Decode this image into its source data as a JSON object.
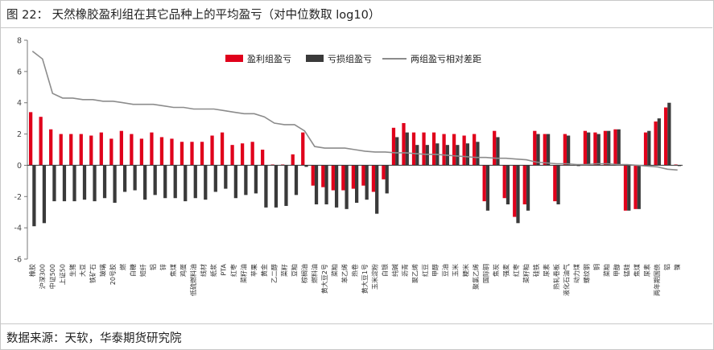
{
  "figure": {
    "title": "图 22：  天然橡胶盈利组在其它品种上的平均盈亏（对中位数取 log10）",
    "source": "数据来源：天软，华泰期货研究院"
  },
  "chart_data": {
    "type": "bar",
    "title": "",
    "xlabel": "",
    "ylabel": "",
    "ylim": [
      -6,
      8
    ],
    "yticks": [
      -6,
      -4,
      -2,
      0,
      2,
      4,
      6,
      8
    ],
    "grid": false,
    "legend_position": "top-right",
    "colors": {
      "profit": "#e0001b",
      "loss": "#3a3a3a",
      "line": "#8c8c8c"
    },
    "categories": [
      "橡胶",
      "沪深300",
      "中证500",
      "上证50",
      "生猪",
      "大豆",
      "铁矿石",
      "玻璃",
      "20号胶",
      "燃",
      "白糖",
      "短纤",
      "铝",
      "锌",
      "焦煤",
      "鸡蛋",
      "低硫燃料油",
      "线材",
      "纸浆",
      "PTA",
      "红枣",
      "菜籽油",
      "苹果",
      "黄金",
      "乙二醇",
      "菜籽",
      "豆粕",
      "棕榈油",
      "燃料油",
      "黄大豆2号",
      "菜粕",
      "苯乙烯",
      "热卷",
      "黄大豆1号",
      "玉米淀粉",
      "白银",
      "纯碱",
      "沥青",
      "聚乙烯",
      "红豆",
      "甲醇",
      "豆油",
      "玉米",
      "粳米",
      "聚氯乙烯",
      "国际铜",
      "焦炭",
      "强麦",
      "红枣",
      "菜籽粕",
      "硅铁",
      "尿素",
      "热轧卷板",
      "液化石油气",
      "动力煤",
      "螺纹钢",
      "铜",
      "菜粕",
      "甲醇",
      "锰硅",
      "焦煤",
      "尿素",
      "两年期国债",
      "铝",
      "镍"
    ],
    "series": [
      {
        "name": "盈利组盈亏",
        "values": [
          3.4,
          3.1,
          2.3,
          2.0,
          2.0,
          2.0,
          1.9,
          2.1,
          1.7,
          2.2,
          2.0,
          1.7,
          2.1,
          1.8,
          1.7,
          1.5,
          1.5,
          1.5,
          1.9,
          2.1,
          1.3,
          1.4,
          1.5,
          1.0,
          0.05,
          0.05,
          0.7,
          2.1,
          -1.3,
          -1.4,
          -1.6,
          -1.6,
          -1.5,
          -1.3,
          -1.7,
          -0.9,
          2.4,
          2.7,
          2.1,
          2.1,
          2.1,
          2.0,
          2.0,
          1.9,
          2.0,
          -2.3,
          2.2,
          -2.1,
          -3.3,
          -2.5,
          2.2,
          2.0,
          -2.3,
          2.0,
          0.05,
          2.2,
          2.1,
          2.2,
          2.3,
          -2.9,
          -2.8,
          2.1,
          2.8,
          3.7,
          0.05
        ]
      },
      {
        "name": "亏损组盈亏",
        "values": [
          -3.9,
          -3.7,
          -2.3,
          -2.3,
          -2.3,
          -2.2,
          -2.3,
          -2.1,
          -2.4,
          -1.7,
          -1.6,
          -2.2,
          -1.9,
          -2.1,
          -2.1,
          -2.3,
          -2.1,
          -2.2,
          -1.7,
          -1.5,
          -2.1,
          -1.9,
          -1.8,
          -2.7,
          -2.7,
          -2.6,
          -1.9,
          -0.1,
          -2.5,
          -2.5,
          -2.7,
          -2.8,
          -2.4,
          -2.2,
          -3.1,
          -1.8,
          1.8,
          2.1,
          1.3,
          1.3,
          1.4,
          1.3,
          1.3,
          1.4,
          1.5,
          -2.9,
          1.8,
          -2.5,
          -3.7,
          -2.9,
          2.0,
          2.0,
          -2.5,
          1.9,
          -0.05,
          2.1,
          2.0,
          2.2,
          2.3,
          -2.9,
          -2.8,
          2.2,
          3.0,
          4.0,
          -0.05
        ]
      },
      {
        "name": "两组盈亏相对差距",
        "values": [
          7.3,
          6.8,
          4.6,
          4.3,
          4.3,
          4.2,
          4.2,
          4.1,
          4.1,
          4.0,
          3.9,
          3.9,
          3.9,
          3.8,
          3.7,
          3.7,
          3.6,
          3.6,
          3.6,
          3.5,
          3.4,
          3.3,
          3.3,
          3.1,
          2.7,
          2.6,
          2.6,
          2.2,
          1.2,
          1.1,
          1.1,
          1.1,
          1.0,
          0.9,
          0.85,
          0.85,
          0.8,
          0.8,
          0.75,
          0.7,
          0.7,
          0.65,
          0.6,
          0.55,
          0.5,
          0.5,
          0.45,
          0.45,
          0.4,
          0.35,
          0.2,
          0.15,
          0.1,
          0.1,
          0.05,
          0.05,
          0.1,
          0.1,
          0.05,
          0.05,
          0.0,
          -0.05,
          -0.1,
          -0.25,
          -0.3
        ]
      }
    ]
  }
}
